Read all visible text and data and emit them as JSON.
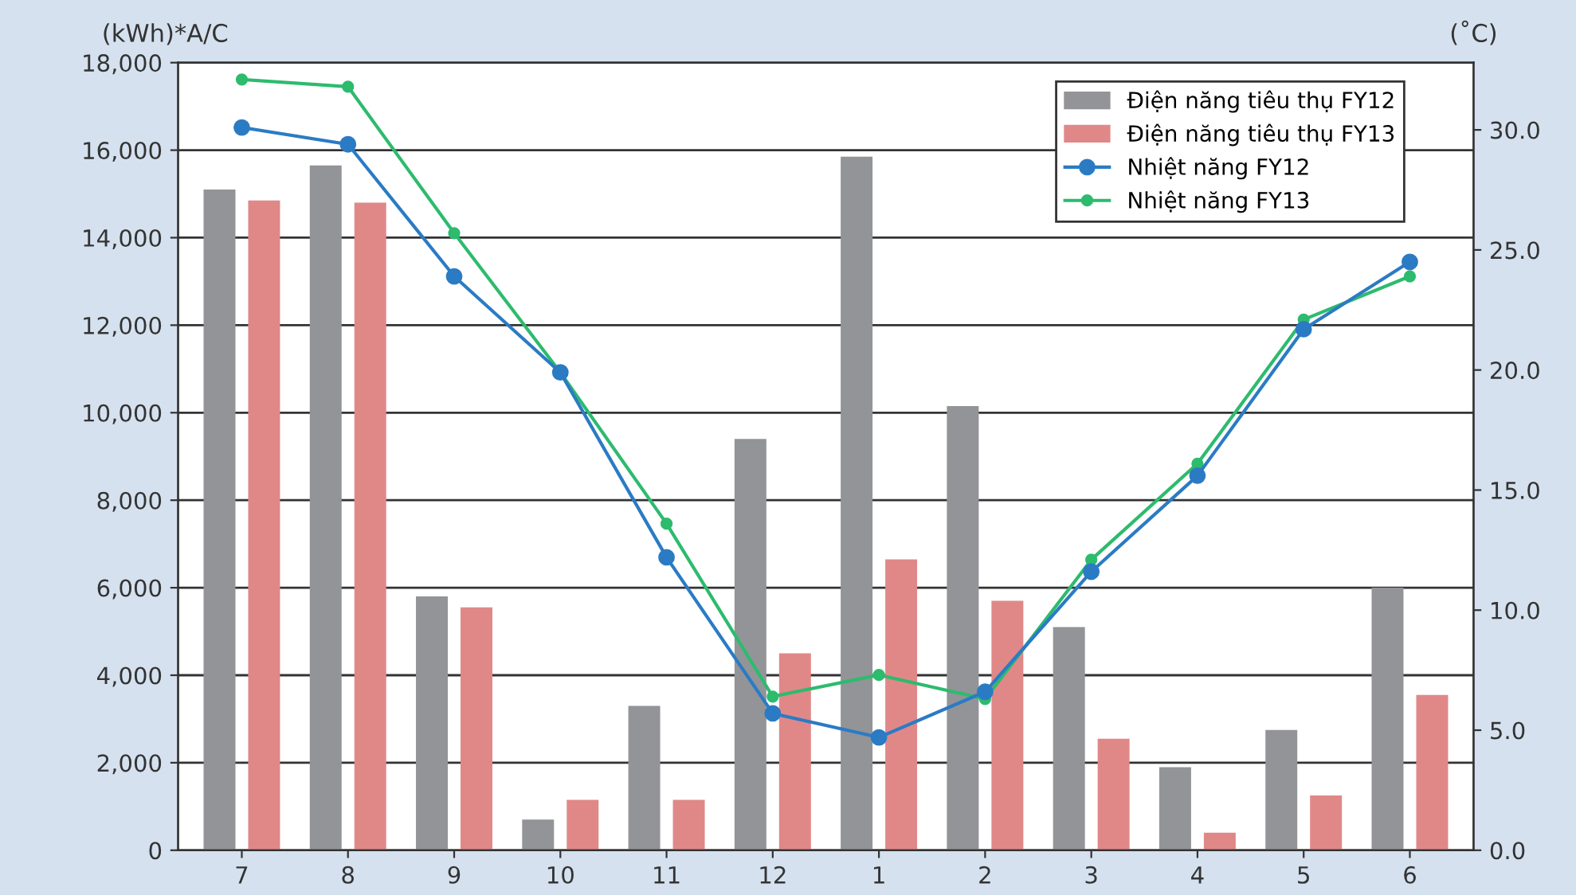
{
  "chart_data": {
    "type": "bar",
    "ylabel": "(kWh)*A/C",
    "y2label": "(˚C)",
    "categories": [
      "7",
      "8",
      "9",
      "10",
      "11",
      "12",
      "1",
      "2",
      "3",
      "4",
      "5",
      "6"
    ],
    "series": [
      {
        "name": "Điện năng tiêu thụ FY12",
        "color": "#939498",
        "values": [
          15100,
          15650,
          5800,
          700,
          3300,
          9400,
          15850,
          10150,
          5100,
          1900,
          2750,
          6000
        ]
      },
      {
        "name": "Điện năng tiêu thụ FY13",
        "color": "#e08888",
        "values": [
          14850,
          14800,
          5550,
          1150,
          1150,
          4500,
          6650,
          5700,
          2550,
          400,
          1250,
          3550
        ]
      },
      {
        "name": "Nhiệt năng FY12",
        "type": "line",
        "axis": "y2",
        "color": "#2b7bc4",
        "values": [
          30.1,
          29.4,
          23.9,
          19.9,
          12.2,
          5.7,
          4.7,
          6.6,
          11.6,
          15.6,
          21.7,
          24.5
        ]
      },
      {
        "name": "Nhiệt năng FY13",
        "type": "line",
        "axis": "y2",
        "color": "#2dbb6e",
        "values": [
          32.1,
          31.8,
          25.7,
          19.9,
          13.6,
          6.4,
          7.3,
          6.3,
          12.1,
          16.1,
          22.1,
          23.9
        ]
      }
    ],
    "ylim": [
      0,
      18000
    ],
    "yticks": [
      {
        "value": 0,
        "label": "0"
      },
      {
        "value": 2000,
        "label": "2,000"
      },
      {
        "value": 4000,
        "label": "4,000"
      },
      {
        "value": 6000,
        "label": "6,000"
      },
      {
        "value": 8000,
        "label": "8,000"
      },
      {
        "value": 10000,
        "label": "10,000"
      },
      {
        "value": 12000,
        "label": "12,000"
      },
      {
        "value": 14000,
        "label": "14,000"
      },
      {
        "value": 16000,
        "label": "16,000"
      },
      {
        "value": 18000,
        "label": "18,000"
      }
    ],
    "y2lim": [
      0,
      32.8
    ],
    "y2ticks": [
      {
        "value": 0,
        "label": "0.0"
      },
      {
        "value": 5,
        "label": "5.0"
      },
      {
        "value": 10,
        "label": "10.0"
      },
      {
        "value": 15,
        "label": "15.0"
      },
      {
        "value": 20,
        "label": "20.0"
      },
      {
        "value": 25,
        "label": "25.0"
      },
      {
        "value": 30,
        "label": "30.0"
      }
    ],
    "grid": "y",
    "legend": "top right",
    "marker": "circle"
  }
}
